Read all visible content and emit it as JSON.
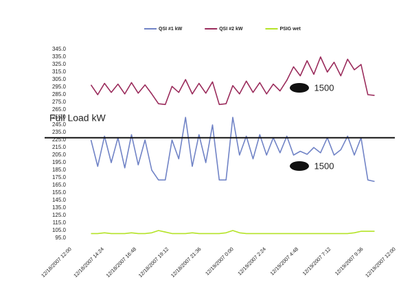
{
  "chart_data": {
    "type": "line",
    "x": [
      "12/18/2007 13:30",
      "12/18/2007 14:00",
      "12/18/2007 14:30",
      "12/18/2007 15:00",
      "12/18/2007 15:30",
      "12/18/2007 16:00",
      "12/18/2007 16:30",
      "12/18/2007 17:00",
      "12/18/2007 17:30",
      "12/18/2007 18:00",
      "12/18/2007 18:30",
      "12/18/2007 19:00",
      "12/18/2007 19:30",
      "12/18/2007 20:00",
      "12/18/2007 20:30",
      "12/18/2007 21:00",
      "12/18/2007 21:30",
      "12/18/2007 22:00",
      "12/18/2007 22:30",
      "12/18/2007 23:00",
      "12/18/2007 23:30",
      "12/19/2007 0:00",
      "12/19/2007 0:30",
      "12/19/2007 1:00",
      "12/19/2007 1:30",
      "12/19/2007 2:00",
      "12/19/2007 2:30",
      "12/19/2007 3:00",
      "12/19/2007 3:30",
      "12/19/2007 4:00",
      "12/19/2007 4:30",
      "12/19/2007 5:00",
      "12/19/2007 5:30",
      "12/19/2007 6:00",
      "12/19/2007 6:30",
      "12/19/2007 7:00",
      "12/19/2007 7:30",
      "12/19/2007 8:00",
      "12/19/2007 8:30",
      "12/19/2007 9:00",
      "12/19/2007 9:30",
      "12/19/2007 10:00",
      "12/19/2007 10:30"
    ],
    "series": [
      {
        "name": "QSI #1 kW",
        "color": "#7083c6",
        "values": [
          225,
          190,
          230,
          195,
          228,
          188,
          232,
          192,
          225,
          185,
          172,
          172,
          225,
          200,
          255,
          190,
          232,
          195,
          245,
          172,
          172,
          255,
          205,
          230,
          200,
          232,
          205,
          228,
          208,
          230,
          205,
          210,
          206,
          215,
          208,
          228,
          205,
          212,
          230,
          205,
          228,
          172,
          170
        ]
      },
      {
        "name": "QSI #2 kW",
        "color": "#9a2b5b",
        "values": [
          298,
          285,
          300,
          288,
          299,
          286,
          301,
          287,
          298,
          286,
          273,
          272,
          296,
          288,
          305,
          286,
          300,
          287,
          302,
          272,
          273,
          297,
          286,
          303,
          288,
          301,
          286,
          299,
          290,
          304,
          322,
          310,
          330,
          312,
          335,
          315,
          328,
          310,
          332,
          318,
          325,
          285,
          284
        ]
      },
      {
        "name": "PSIG wet",
        "color": "#b4e326",
        "values": [
          101,
          101,
          102,
          101,
          101,
          101,
          102,
          101,
          101,
          102,
          105,
          103,
          101,
          101,
          101,
          102,
          101,
          101,
          101,
          101,
          102,
          105,
          102,
          101,
          101,
          101,
          101,
          101,
          101,
          101,
          101,
          101,
          101,
          101,
          101,
          101,
          101,
          101,
          101,
          102,
          104,
          104,
          104
        ]
      }
    ],
    "xlim": [
      "12/18/2007 12:00",
      "12/19/2007 12:00"
    ],
    "xticks": [
      "12/18/2007 12:00",
      "12/18/2007 14:24",
      "12/18/2007 16:48",
      "12/18/2007 19:12",
      "12/18/2007 21:36",
      "12/19/2007 0:00",
      "12/19/2007 2:24",
      "12/19/2007 4:48",
      "12/19/2007 7:12",
      "12/19/2007 9:36",
      "12/19/2007 12:00"
    ],
    "ylim": [
      95,
      345
    ],
    "yticks": [
      {
        "value": 95,
        "label": "95.0"
      },
      {
        "value": 105,
        "label": "105.0"
      },
      {
        "value": 115,
        "label": "115.0"
      },
      {
        "value": 125,
        "label": "125.0"
      },
      {
        "value": 135,
        "label": "135.0"
      },
      {
        "value": 145,
        "label": "145.0"
      },
      {
        "value": 155,
        "label": "155.0"
      },
      {
        "value": 165,
        "label": "165.0"
      },
      {
        "value": 175,
        "label": "175.0"
      },
      {
        "value": 185,
        "label": "185.0"
      },
      {
        "value": 195,
        "label": "195.0"
      },
      {
        "value": 205,
        "label": "205.0"
      },
      {
        "value": 215,
        "label": "215.0"
      },
      {
        "value": 225,
        "label": "225.0"
      },
      {
        "value": 235,
        "label": "235.0"
      },
      {
        "value": 245,
        "label": "245.0"
      },
      {
        "value": 255,
        "label": "255.0"
      },
      {
        "value": 265,
        "label": "265.0"
      },
      {
        "value": 275,
        "label": "275.0"
      },
      {
        "value": 285,
        "label": "285.0"
      },
      {
        "value": 295,
        "label": "295.0"
      },
      {
        "value": 305,
        "label": "305.0"
      },
      {
        "value": 315,
        "label": "315.0"
      },
      {
        "value": 325,
        "label": "325.0"
      },
      {
        "value": 335,
        "label": "335.0"
      },
      {
        "value": 345,
        "label": "345.0"
      }
    ],
    "reference_line": {
      "label": "Full Load kW",
      "value": 228
    },
    "annotations": [
      {
        "text": "1500"
      },
      {
        "text": "1500"
      }
    ],
    "legend": "top"
  }
}
